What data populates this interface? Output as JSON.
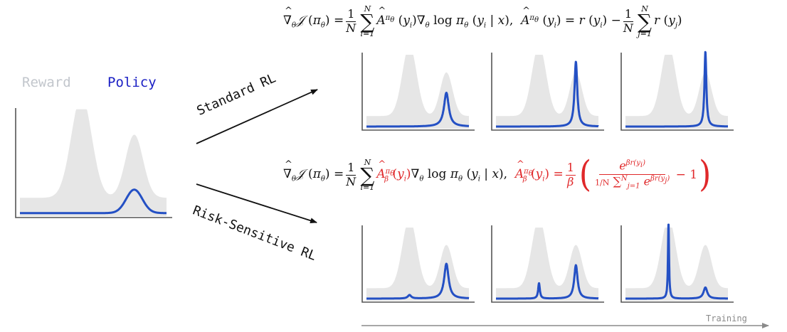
{
  "legend": {
    "reward_label": "Reward",
    "policy_label": "Policy",
    "reward_color": "#e6e6e6",
    "policy_color": "#1a1fc4",
    "reward_text_color": "#c2c6cc"
  },
  "branches": {
    "standard": {
      "label": "Standard RL"
    },
    "risk_sensitive": {
      "label": "Risk-Sensitive RL"
    }
  },
  "formulas": {
    "standard": {
      "lhs": "∇̂θ𝒥(πθ)",
      "gradient": "∇̂θ𝒥 (πθ) = 1/N Σ_{i=1}^{N} Â^{πθ}(yᵢ)∇θ log πθ(yᵢ | x)",
      "advantage": "Â^{πθ}(yᵢ) = r(yᵢ) − 1/N Σ_{j=1}^{N} r(yⱼ)",
      "advantage_color": "#111111"
    },
    "risk_sensitive": {
      "gradient": "∇̂θ𝒥 (πθ) = 1/N Σ_{i=1}^{N} Â_β^{πθ}(yᵢ)∇θ log πθ(yᵢ | x)",
      "advantage": "Â_β^{πθ}(yᵢ) = 1/β ( e^{βr(yᵢ)} / (1/N Σ_{j=1}^{N} e^{βr(yⱼ)}) − 1 )",
      "advantage_color": "#e0282a"
    }
  },
  "axis": {
    "training_label": "Training"
  },
  "chart_data": [
    {
      "id": "initial",
      "type": "area",
      "title": "Initial policy",
      "reward": {
        "peaks": [
          {
            "x": 0.42,
            "height": 1.0,
            "width": 0.07
          },
          {
            "x": 0.78,
            "height": 0.62,
            "width": 0.06
          }
        ],
        "baseline": 0.18
      },
      "policy": {
        "peaks": [
          {
            "x": 0.78,
            "height": 0.23,
            "width": 0.055,
            "shape": "gaussian"
          }
        ],
        "baseline": 0.03
      }
    },
    {
      "id": "standard-step-1",
      "type": "area",
      "title": "Standard RL, early training",
      "reward": {
        "peaks": [
          {
            "x": 0.42,
            "height": 1.0,
            "width": 0.07
          },
          {
            "x": 0.78,
            "height": 0.62,
            "width": 0.06
          }
        ],
        "baseline": 0.18
      },
      "policy": {
        "peaks": [
          {
            "x": 0.78,
            "height": 0.48,
            "width": 0.028,
            "shape": "sharp"
          }
        ],
        "baseline": 0.03
      }
    },
    {
      "id": "standard-step-2",
      "type": "area",
      "title": "Standard RL, mid training",
      "reward": {
        "peaks": [
          {
            "x": 0.42,
            "height": 1.0,
            "width": 0.07
          },
          {
            "x": 0.78,
            "height": 0.62,
            "width": 0.06
          }
        ],
        "baseline": 0.18
      },
      "policy": {
        "peaks": [
          {
            "x": 0.78,
            "height": 0.92,
            "width": 0.016,
            "shape": "sharp"
          }
        ],
        "baseline": 0.03
      }
    },
    {
      "id": "standard-step-3",
      "type": "area",
      "title": "Standard RL, late training",
      "reward": {
        "peaks": [
          {
            "x": 0.42,
            "height": 1.0,
            "width": 0.07
          },
          {
            "x": 0.78,
            "height": 0.62,
            "width": 0.06
          }
        ],
        "baseline": 0.18
      },
      "policy": {
        "peaks": [
          {
            "x": 0.78,
            "height": 1.06,
            "width": 0.011,
            "shape": "sharp"
          }
        ],
        "baseline": 0.03
      }
    },
    {
      "id": "risk-step-1",
      "type": "area",
      "title": "Risk-Sensitive RL, early training",
      "reward": {
        "peaks": [
          {
            "x": 0.42,
            "height": 1.0,
            "width": 0.07
          },
          {
            "x": 0.78,
            "height": 0.62,
            "width": 0.06
          }
        ],
        "baseline": 0.18
      },
      "policy": {
        "peaks": [
          {
            "x": 0.42,
            "height": 0.05,
            "width": 0.02,
            "shape": "sharp"
          },
          {
            "x": 0.78,
            "height": 0.5,
            "width": 0.026,
            "shape": "sharp"
          }
        ],
        "baseline": 0.03
      }
    },
    {
      "id": "risk-step-2",
      "type": "area",
      "title": "Risk-Sensitive RL, mid training",
      "reward": {
        "peaks": [
          {
            "x": 0.42,
            "height": 1.0,
            "width": 0.07
          },
          {
            "x": 0.78,
            "height": 0.62,
            "width": 0.06
          }
        ],
        "baseline": 0.18
      },
      "policy": {
        "peaks": [
          {
            "x": 0.42,
            "height": 0.22,
            "width": 0.01,
            "shape": "sharp"
          },
          {
            "x": 0.78,
            "height": 0.48,
            "width": 0.02,
            "shape": "sharp"
          }
        ],
        "baseline": 0.03
      }
    },
    {
      "id": "risk-step-3",
      "type": "area",
      "title": "Risk-Sensitive RL, late training",
      "reward": {
        "peaks": [
          {
            "x": 0.42,
            "height": 1.0,
            "width": 0.07
          },
          {
            "x": 0.78,
            "height": 0.62,
            "width": 0.06
          }
        ],
        "baseline": 0.18
      },
      "policy": {
        "peaks": [
          {
            "x": 0.42,
            "height": 1.12,
            "width": 0.006,
            "shape": "sharp"
          },
          {
            "x": 0.78,
            "height": 0.16,
            "width": 0.022,
            "shape": "sharp"
          }
        ],
        "baseline": 0.03
      }
    }
  ]
}
